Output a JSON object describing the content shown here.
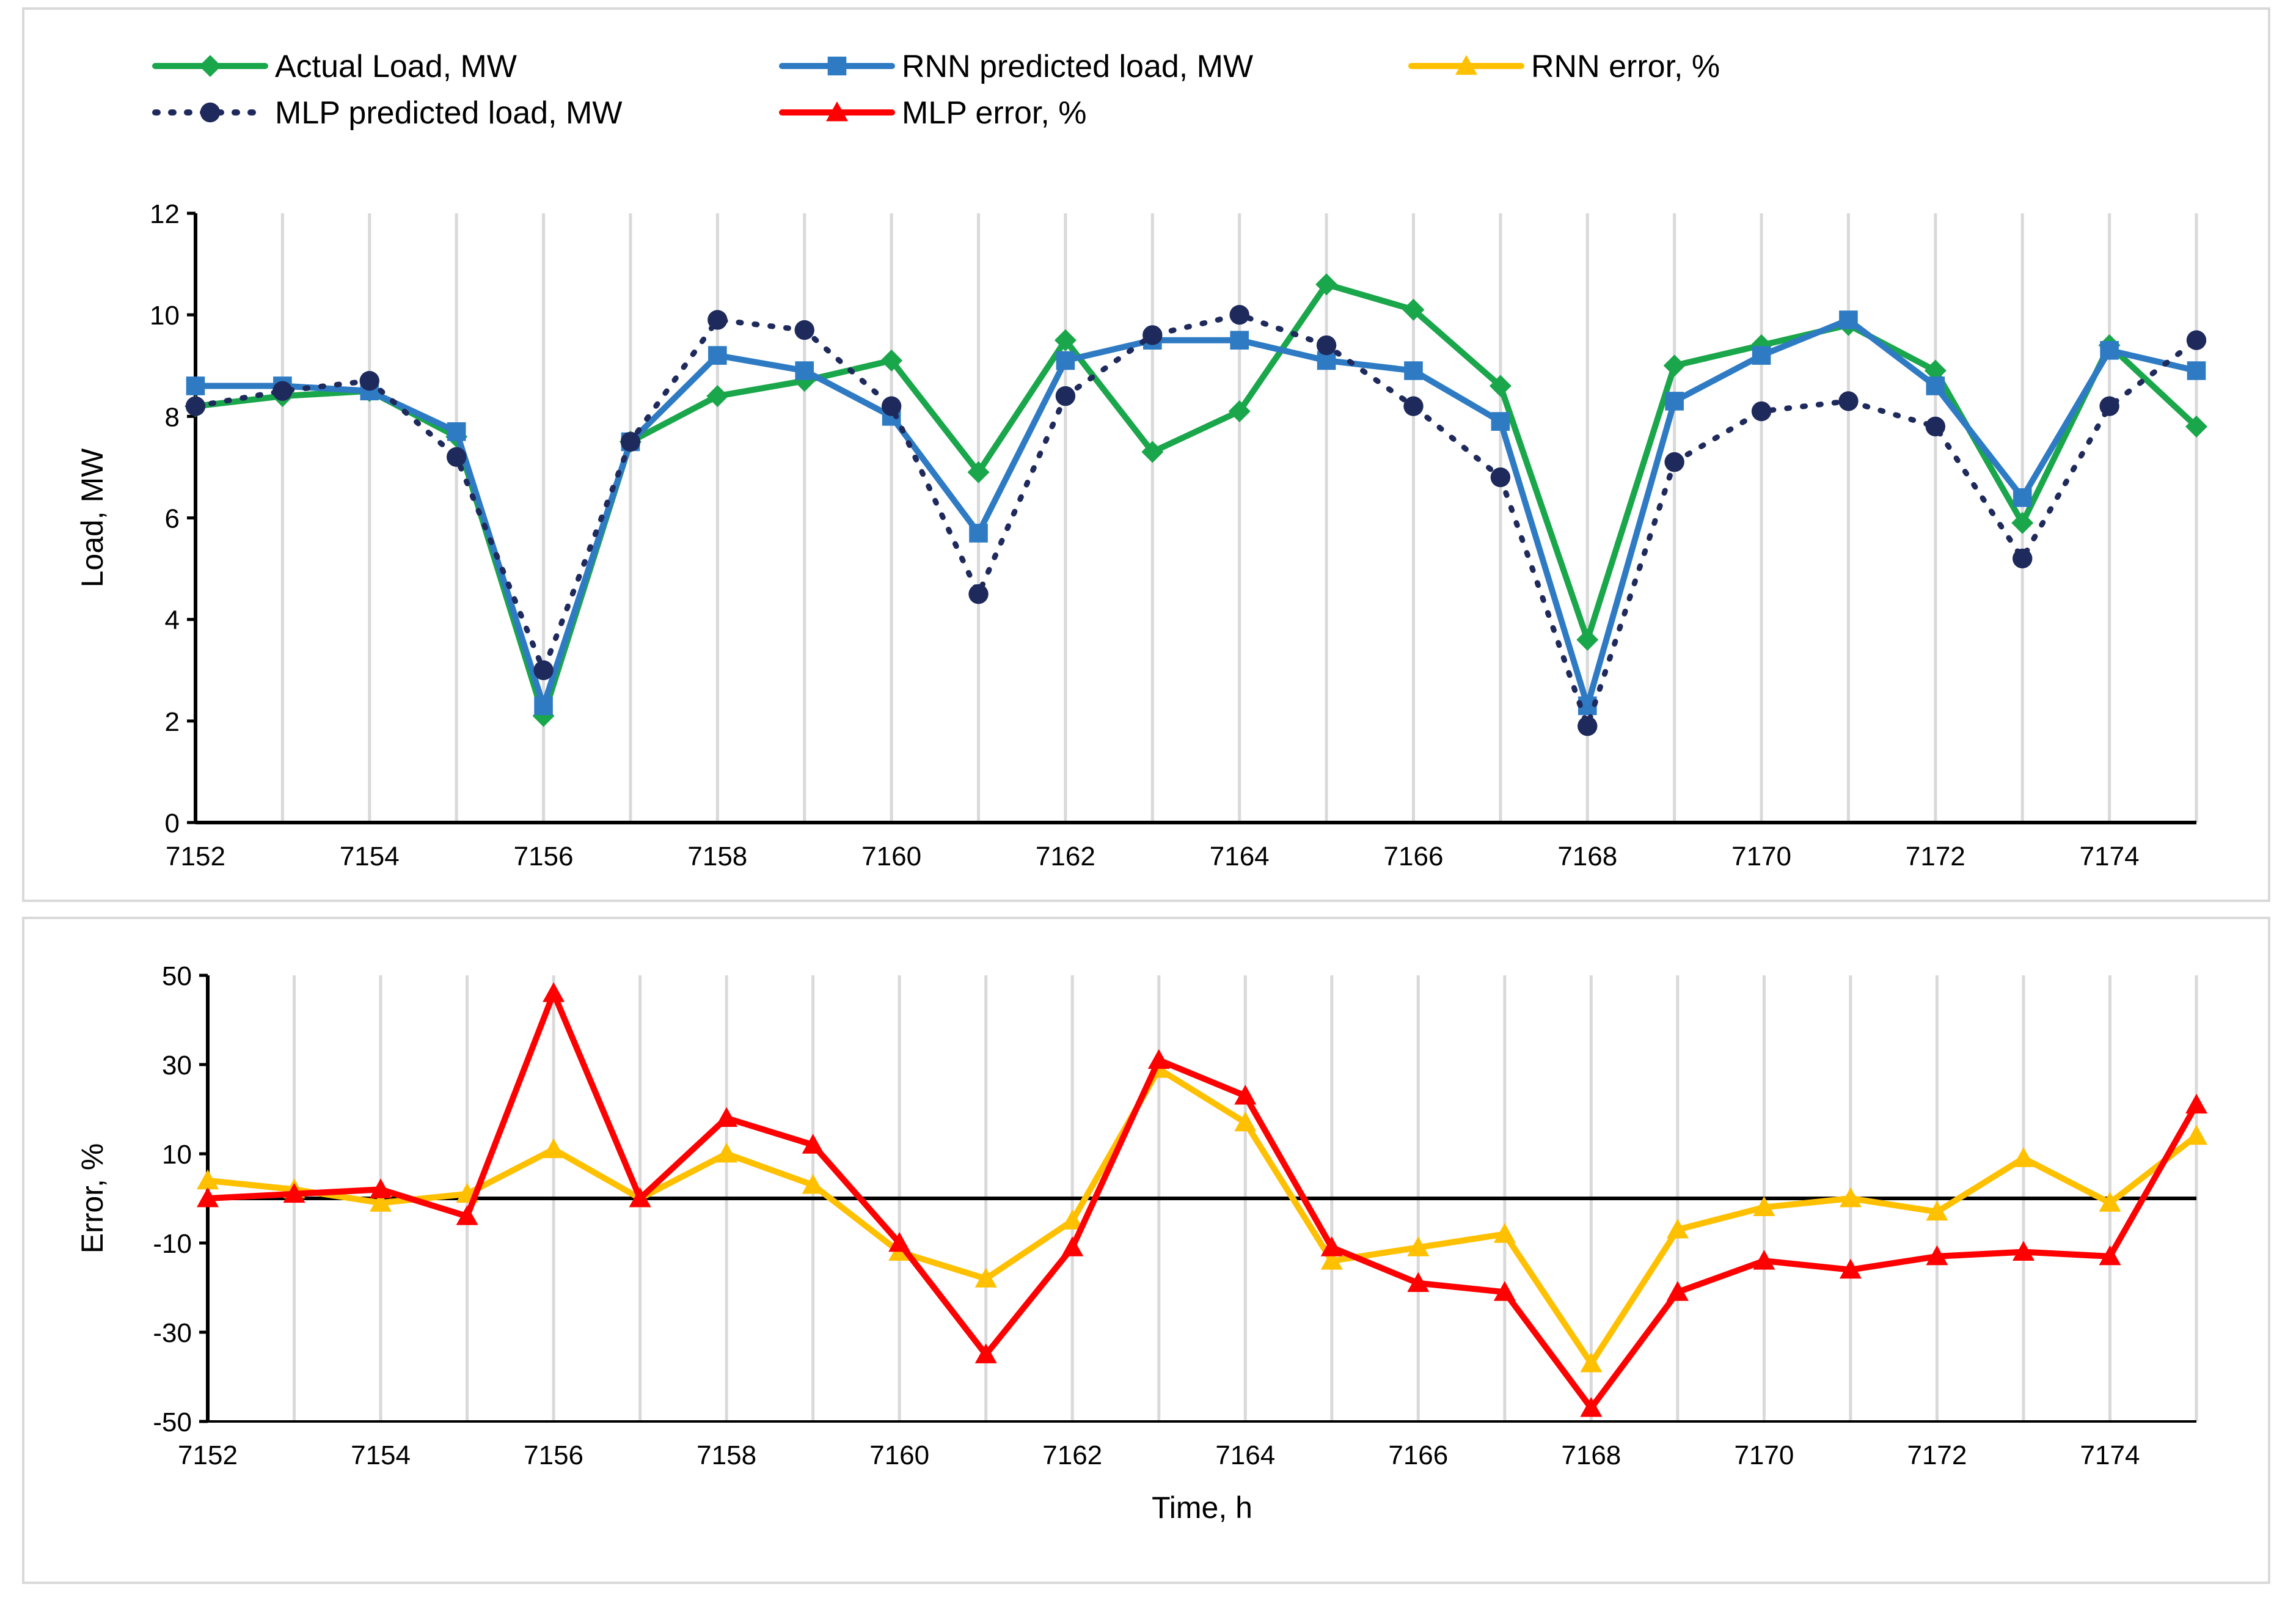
{
  "chart_data": [
    {
      "type": "line",
      "title": "",
      "xlabel": "",
      "ylabel": "Load, MW",
      "ylim": [
        0,
        12
      ],
      "yticks": [
        0,
        2,
        4,
        6,
        8,
        10,
        12
      ],
      "xlim": [
        7152,
        7175
      ],
      "xticks": [
        7152,
        7154,
        7156,
        7158,
        7160,
        7162,
        7164,
        7166,
        7168,
        7170,
        7172,
        7174
      ],
      "x": [
        7152,
        7153,
        7154,
        7155,
        7156,
        7157,
        7158,
        7159,
        7160,
        7161,
        7162,
        7163,
        7164,
        7165,
        7166,
        7167,
        7168,
        7169,
        7170,
        7171,
        7172,
        7173,
        7174,
        7175
      ],
      "grid": "vertical",
      "legend": [
        {
          "name": "Actual Load, MW",
          "color": "#1aa64a",
          "marker": "diamond",
          "dash": "solid"
        },
        {
          "name": "RNN predicted load, MW",
          "color": "#2e7bc4",
          "marker": "square",
          "dash": "solid"
        },
        {
          "name": "RNN error, %",
          "color": "#ffc000",
          "marker": "triangle",
          "dash": "solid"
        },
        {
          "name": "MLP predicted load, MW",
          "color": "#1f2a5c",
          "marker": "circle",
          "dash": "dotted"
        },
        {
          "name": "MLP error, %",
          "color": "#ff0000",
          "marker": "triangle",
          "dash": "solid"
        }
      ],
      "series": [
        {
          "name": "Actual Load, MW",
          "color": "#1aa64a",
          "marker": "diamond",
          "dash": "solid",
          "values": [
            8.2,
            8.4,
            8.5,
            7.6,
            2.1,
            7.5,
            8.4,
            8.7,
            9.1,
            6.9,
            9.5,
            7.3,
            8.1,
            10.6,
            10.1,
            8.6,
            3.6,
            9.0,
            9.4,
            9.8,
            8.9,
            5.9,
            9.4,
            7.8
          ]
        },
        {
          "name": "RNN predicted load, MW",
          "color": "#2e7bc4",
          "marker": "square",
          "dash": "solid",
          "values": [
            8.6,
            8.6,
            8.5,
            7.7,
            2.3,
            7.5,
            9.2,
            8.9,
            8.0,
            5.7,
            9.1,
            9.5,
            9.5,
            9.1,
            8.9,
            7.9,
            2.3,
            8.3,
            9.2,
            9.9,
            8.6,
            6.4,
            9.3,
            8.9
          ]
        },
        {
          "name": "MLP predicted load, MW",
          "color": "#1f2a5c",
          "marker": "circle",
          "dash": "dotted",
          "values": [
            8.2,
            8.5,
            8.7,
            7.2,
            3.0,
            7.5,
            9.9,
            9.7,
            8.2,
            4.5,
            8.4,
            9.6,
            10.0,
            9.4,
            8.2,
            6.8,
            1.9,
            7.1,
            8.1,
            8.3,
            7.8,
            5.2,
            8.2,
            9.5
          ]
        }
      ]
    },
    {
      "type": "line",
      "title": "",
      "xlabel": "Time, h",
      "ylabel": "Error, %",
      "ylim": [
        -50,
        50
      ],
      "yticks": [
        -50,
        -30,
        -10,
        10,
        30,
        50
      ],
      "xlim": [
        7152,
        7175
      ],
      "xticks": [
        7152,
        7154,
        7156,
        7158,
        7160,
        7162,
        7164,
        7166,
        7168,
        7170,
        7172,
        7174
      ],
      "x": [
        7152,
        7153,
        7154,
        7155,
        7156,
        7157,
        7158,
        7159,
        7160,
        7161,
        7162,
        7163,
        7164,
        7165,
        7166,
        7167,
        7168,
        7169,
        7170,
        7171,
        7172,
        7173,
        7174,
        7175
      ],
      "grid": "vertical",
      "zero_line": true,
      "series": [
        {
          "name": "RNN error, %",
          "color": "#ffc000",
          "marker": "triangle",
          "dash": "solid",
          "values": [
            4,
            2,
            -1,
            1,
            11,
            0,
            10,
            3,
            -12,
            -18,
            -5,
            29,
            17,
            -14,
            -11,
            -8,
            -37,
            -7,
            -2,
            0,
            -3,
            9,
            -1,
            14
          ]
        },
        {
          "name": "MLP error, %",
          "color": "#ff0000",
          "marker": "triangle",
          "dash": "solid",
          "values": [
            0,
            1,
            2,
            -4,
            46,
            0,
            18,
            12,
            -10,
            -35,
            -11,
            31,
            23,
            -11,
            -19,
            -21,
            -47,
            -21,
            -14,
            -16,
            -13,
            -12,
            -13,
            21
          ]
        }
      ]
    }
  ]
}
